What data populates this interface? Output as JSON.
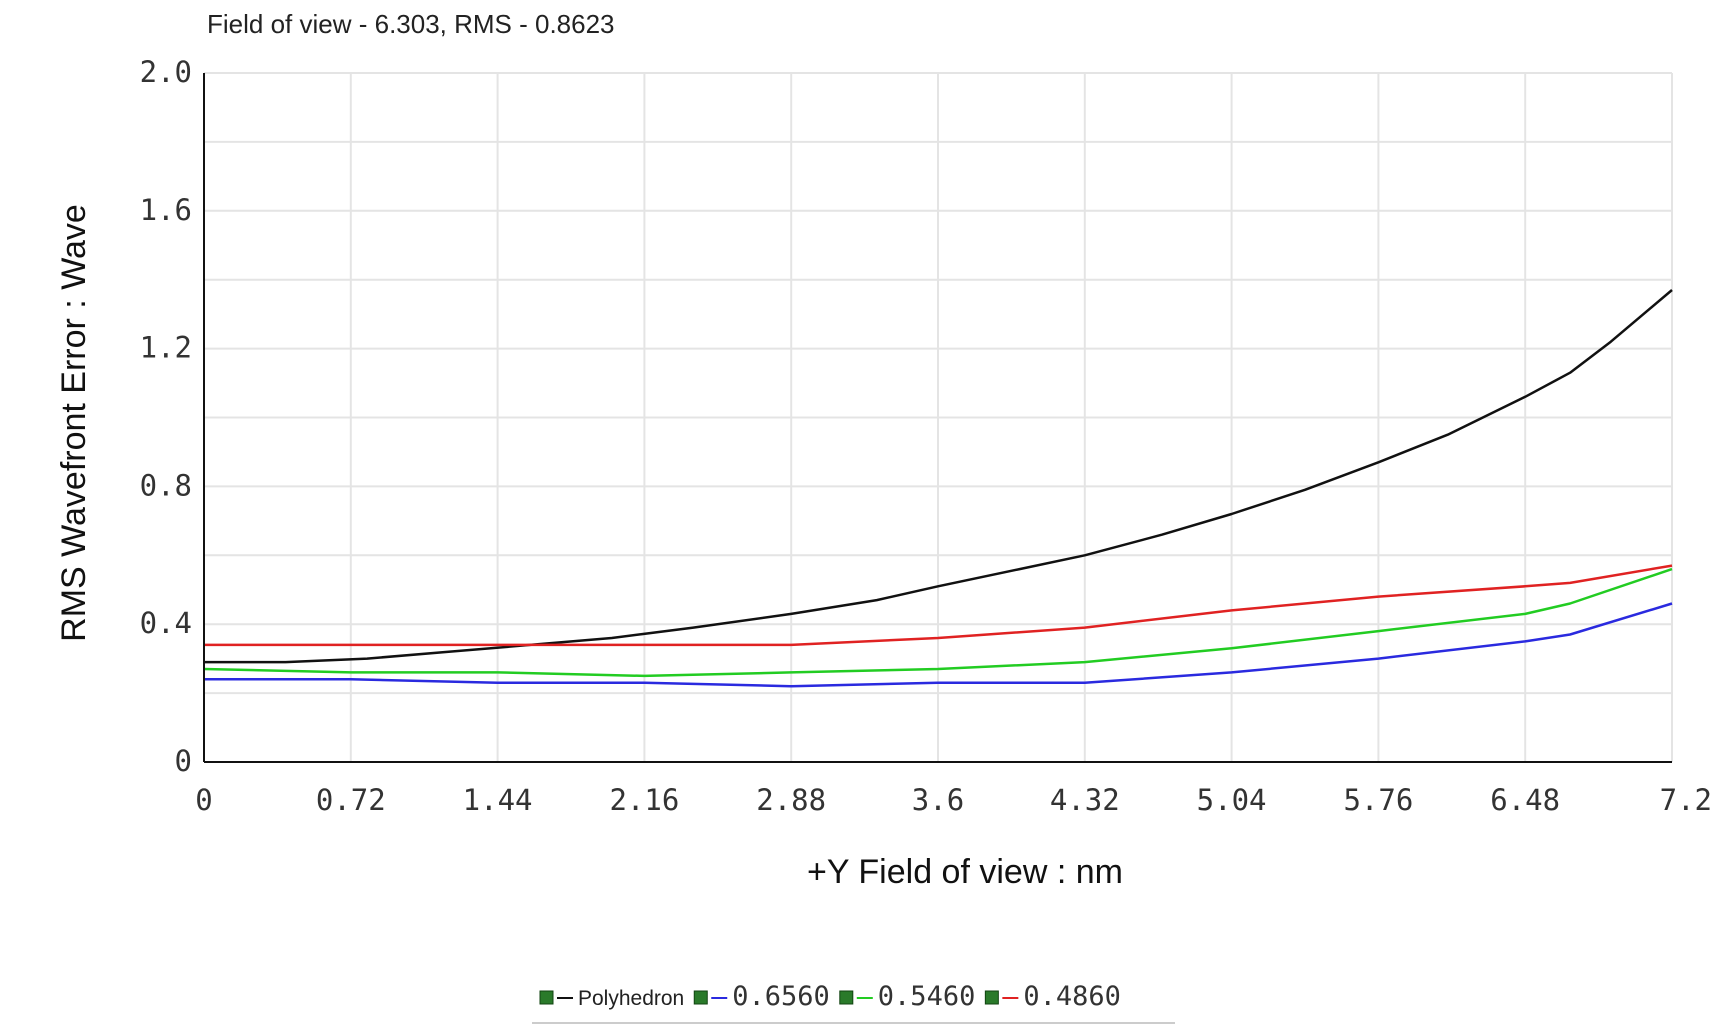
{
  "chart_data": {
    "type": "line",
    "title": "Field of view - 6.303, RMS - 0.8623",
    "xlabel": "+Y Field of view : nm",
    "ylabel": "RMS Wavefront Error : Wave",
    "xlim": [
      0,
      7.2
    ],
    "ylim": [
      0,
      2.0
    ],
    "x_ticks": [
      "0",
      "0.72",
      "1.44",
      "2.16",
      "2.88",
      "3.6",
      "4.32",
      "5.04",
      "5.76",
      "6.48",
      "7.2"
    ],
    "y_ticks": [
      "0",
      "0.4",
      "0.8",
      "1.2",
      "1.6",
      "2.0"
    ],
    "grid": true,
    "legend_position": "bottom-center",
    "series": [
      {
        "name": "Polyhedron",
        "color": "#111111",
        "x": [
          0,
          0.4,
          0.8,
          1.2,
          1.6,
          2.0,
          2.4,
          2.88,
          3.3,
          3.6,
          4.0,
          4.32,
          4.7,
          5.04,
          5.4,
          5.76,
          6.1,
          6.48,
          6.7,
          6.9,
          7.2
        ],
        "y": [
          0.29,
          0.29,
          0.3,
          0.32,
          0.34,
          0.36,
          0.39,
          0.43,
          0.47,
          0.51,
          0.56,
          0.6,
          0.66,
          0.72,
          0.79,
          0.87,
          0.95,
          1.06,
          1.13,
          1.22,
          1.37
        ]
      },
      {
        "name": "0.6560",
        "color": "#2a2adf",
        "x": [
          0,
          0.72,
          1.44,
          2.16,
          2.88,
          3.6,
          4.32,
          5.04,
          5.76,
          6.48,
          6.7,
          7.2
        ],
        "y": [
          0.24,
          0.24,
          0.23,
          0.23,
          0.22,
          0.23,
          0.23,
          0.26,
          0.3,
          0.35,
          0.37,
          0.46
        ]
      },
      {
        "name": "0.5460",
        "color": "#22cc22",
        "x": [
          0,
          0.72,
          1.44,
          2.16,
          2.88,
          3.6,
          4.32,
          5.04,
          5.76,
          6.48,
          6.7,
          7.2
        ],
        "y": [
          0.27,
          0.26,
          0.26,
          0.25,
          0.26,
          0.27,
          0.29,
          0.33,
          0.38,
          0.43,
          0.46,
          0.56
        ]
      },
      {
        "name": "0.4860",
        "color": "#e02222",
        "x": [
          0,
          0.72,
          1.44,
          2.16,
          2.88,
          3.6,
          4.32,
          5.04,
          5.76,
          6.48,
          6.7,
          7.2
        ],
        "y": [
          0.34,
          0.34,
          0.34,
          0.34,
          0.34,
          0.36,
          0.39,
          0.44,
          0.48,
          0.51,
          0.52,
          0.57
        ]
      }
    ]
  }
}
